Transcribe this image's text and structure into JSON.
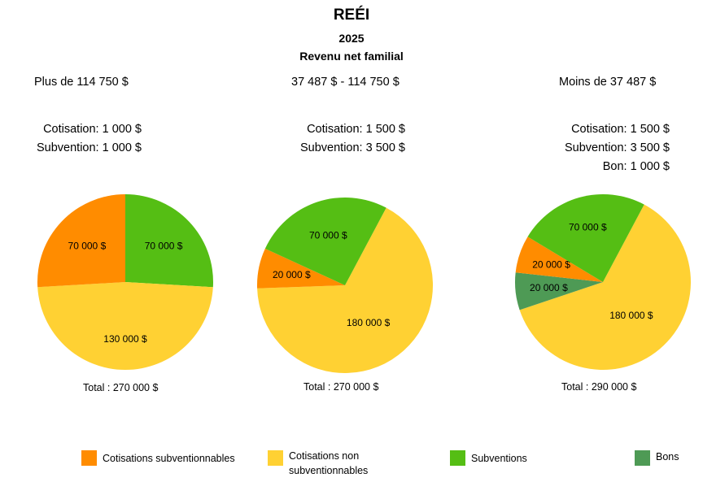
{
  "title": "REÉI",
  "year": "2025",
  "subtitle": "Revenu net familial",
  "colors": {
    "cotisations_subventionnables": "#FF8C00",
    "cotisations_non_subventionnables": "#FFD133",
    "subventions": "#55BE14",
    "bons": "#4E9A55"
  },
  "legend": [
    {
      "label": "Cotisations subventionnables",
      "color": "#FF8C00"
    },
    {
      "label": "Cotisations non subventionnables",
      "color": "#FFD133"
    },
    {
      "label": "Subventions",
      "color": "#55BE14"
    },
    {
      "label": "Bons",
      "color": "#4E9A55"
    }
  ],
  "panels": [
    {
      "header": "Plus de 114 750 $",
      "info": [
        "Cotisation: 1 000 $",
        "Subvention: 1 000 $"
      ],
      "total": "Total : 270 000 $"
    },
    {
      "header": "37 487 $ - 114 750 $",
      "info": [
        "Cotisation: 1 500 $",
        "Subvention: 3 500 $"
      ],
      "total": "Total : 270 000 $"
    },
    {
      "header": "Moins de 37 487 $",
      "info": [
        "Cotisation: 1 500 $",
        "Subvention: 3 500 $",
        "Bon: 1 000 $"
      ],
      "total": "Total : 290 000 $"
    }
  ],
  "chart_data": [
    {
      "type": "pie",
      "total": 270000,
      "slices": [
        {
          "category": "Subventions",
          "value": 70000,
          "label": "70 000 $",
          "color": "#55BE14"
        },
        {
          "category": "Cotisations non subventionnables",
          "value": 130000,
          "label": "130 000 $",
          "color": "#FFD133"
        },
        {
          "category": "Cotisations subventionnables",
          "value": 70000,
          "label": "70 000 $",
          "color": "#FF8C00"
        }
      ]
    },
    {
      "type": "pie",
      "total": 270000,
      "slices": [
        {
          "category": "Cotisations non subventionnables",
          "value": 180000,
          "label": "180 000 $",
          "color": "#FFD133"
        },
        {
          "category": "Cotisations subventionnables",
          "value": 20000,
          "label": "20 000 $",
          "color": "#FF8C00"
        },
        {
          "category": "Subventions",
          "value": 70000,
          "label": "70 000 $",
          "color": "#55BE14"
        }
      ]
    },
    {
      "type": "pie",
      "total": 290000,
      "slices": [
        {
          "category": "Cotisations non subventionnables",
          "value": 180000,
          "label": "180 000 $",
          "color": "#FFD133"
        },
        {
          "category": "Bons",
          "value": 20000,
          "label": "20 000 $",
          "color": "#4E9A55"
        },
        {
          "category": "Cotisations subventionnables",
          "value": 20000,
          "label": "20 000 $",
          "color": "#FF8C00"
        },
        {
          "category": "Subventions",
          "value": 70000,
          "label": "70 000 $",
          "color": "#55BE14"
        }
      ]
    }
  ]
}
